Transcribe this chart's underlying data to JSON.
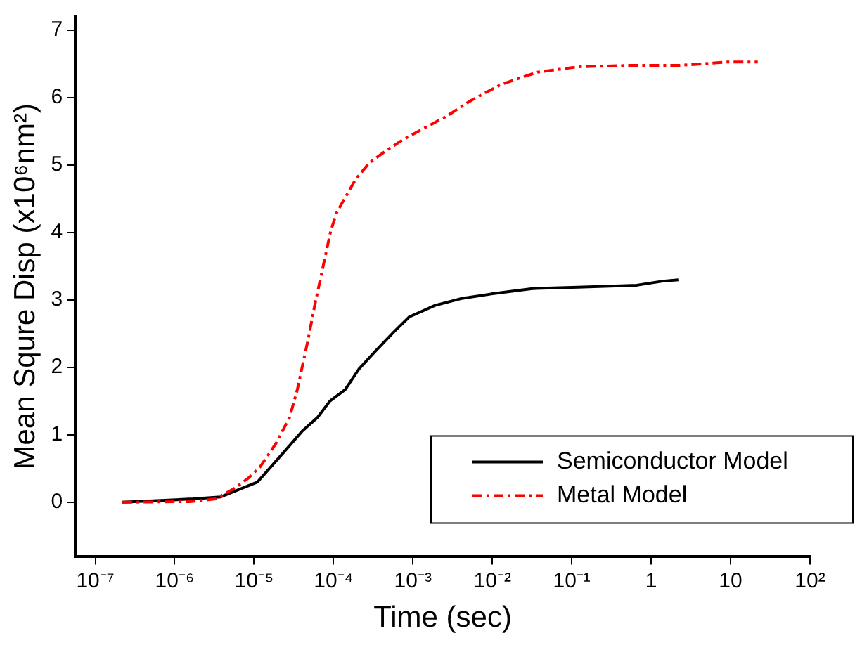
{
  "chart_data": {
    "type": "line",
    "xlabel": "Time (sec)",
    "ylabel": "Mean Squre Disp (x10⁶nm²)",
    "log": "x",
    "xlim": [
      5.6e-08,
      100
    ],
    "ylim": [
      -0.8,
      7.2
    ],
    "xticks": [
      {
        "value": 1e-07,
        "label": "10⁻⁷"
      },
      {
        "value": 1e-06,
        "label": "10⁻⁶"
      },
      {
        "value": 1e-05,
        "label": "10⁻⁵"
      },
      {
        "value": 0.0001,
        "label": "10⁻⁴"
      },
      {
        "value": 0.001,
        "label": "10⁻³"
      },
      {
        "value": 0.01,
        "label": "10⁻²"
      },
      {
        "value": 0.1,
        "label": "10⁻¹"
      },
      1,
      10,
      {
        "value": 100,
        "label": "10²"
      }
    ],
    "yticks": [
      0,
      1,
      2,
      3,
      4,
      5,
      6,
      7
    ],
    "grid": false,
    "legend": "bottom right",
    "marker": "none",
    "series": [
      {
        "name": "Semiconductor Model",
        "color": "#000000",
        "line_style": "solid",
        "x": [
          2.2e-07,
          1.7e-06,
          3.8e-06,
          1.1e-05,
          2.2e-05,
          4e-05,
          6.3e-05,
          9e-05,
          0.00014,
          0.00021,
          0.00033,
          0.00059,
          0.0009,
          0.0019,
          0.004,
          0.0097,
          0.032,
          0.12,
          0.66,
          1.4,
          2.2
        ],
        "values": [
          0,
          0.05,
          0.08,
          0.3,
          0.7,
          1.05,
          1.26,
          1.5,
          1.67,
          1.98,
          2.23,
          2.54,
          2.75,
          2.92,
          3.02,
          3.09,
          3.17,
          3.19,
          3.22,
          3.28,
          3.3
        ]
      },
      {
        "name": "Metal Model",
        "color": "#ff0000",
        "line_style": "dashed",
        "x": [
          2.2e-07,
          1.6e-06,
          3.3e-06,
          5.9e-06,
          8.5e-06,
          1.2e-05,
          1.9e-05,
          2.8e-05,
          3.5e-05,
          4.7e-05,
          5.8e-05,
          7.3e-05,
          9.2e-05,
          0.00011,
          0.00015,
          0.00019,
          0.00028,
          0.00044,
          0.00073,
          0.0012,
          0.0026,
          0.0054,
          0.013,
          0.037,
          0.12,
          0.54,
          2.3,
          8.9,
          22
        ],
        "values": [
          0,
          0.01,
          0.05,
          0.22,
          0.36,
          0.53,
          0.88,
          1.26,
          1.67,
          2.37,
          2.92,
          3.47,
          4.02,
          4.3,
          4.58,
          4.79,
          5.03,
          5.2,
          5.37,
          5.51,
          5.72,
          5.96,
          6.2,
          6.38,
          6.46,
          6.48,
          6.48,
          6.53,
          6.53
        ]
      }
    ]
  }
}
